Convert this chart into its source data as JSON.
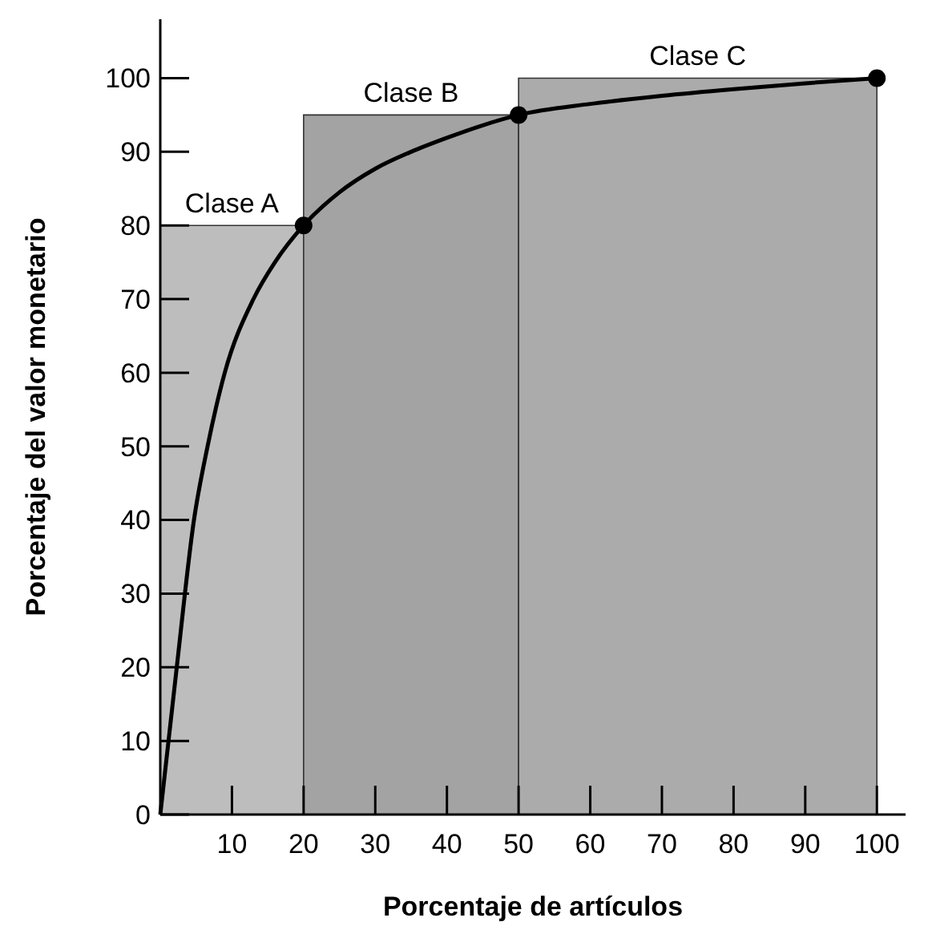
{
  "chart_data": {
    "type": "line",
    "xlabel": "Porcentaje de artículos",
    "ylabel": "Porcentaje del valor monetario",
    "xlim": [
      0,
      104
    ],
    "ylim": [
      0,
      108
    ],
    "xticks": [
      10,
      20,
      30,
      40,
      50,
      60,
      70,
      80,
      90,
      100
    ],
    "yticks": [
      0,
      10,
      20,
      30,
      40,
      50,
      60,
      70,
      80,
      90,
      100
    ],
    "grid": false,
    "marker": "none",
    "line_style": "solid",
    "series": [
      {
        "type": "area",
        "color": "#bdbdbd",
        "x": [
          0,
          20
        ],
        "values": [
          80,
          80
        ]
      },
      {
        "type": "area",
        "color": "#a3a3a3",
        "x": [
          20,
          50
        ],
        "values": [
          95,
          95
        ]
      },
      {
        "type": "area",
        "color": "#ababab",
        "x": [
          50,
          100
        ],
        "values": [
          100,
          100
        ]
      },
      {
        "color": "#000000",
        "x": [
          0,
          2.3,
          4.7,
          6.6,
          9,
          13,
          16,
          20,
          25,
          30,
          35,
          40,
          45,
          50,
          60,
          70,
          80,
          90,
          100
        ],
        "values": [
          0,
          20,
          40,
          50,
          60,
          70,
          75,
          80,
          84.5,
          87.7,
          90,
          91.9,
          93.6,
          95,
          96.5,
          97.6,
          98.5,
          99.3,
          100
        ]
      },
      {
        "type": "scatter",
        "color": "#000000",
        "marker": "circle",
        "x": [
          20,
          50,
          100
        ],
        "values": [
          80,
          95,
          100
        ]
      }
    ],
    "annotations": [
      {
        "text": "Clase A",
        "x": 10,
        "y": 80
      },
      {
        "text": "Clase B",
        "x": 35,
        "y": 95
      },
      {
        "text": "Clase C",
        "x": 75,
        "y": 100
      }
    ]
  }
}
